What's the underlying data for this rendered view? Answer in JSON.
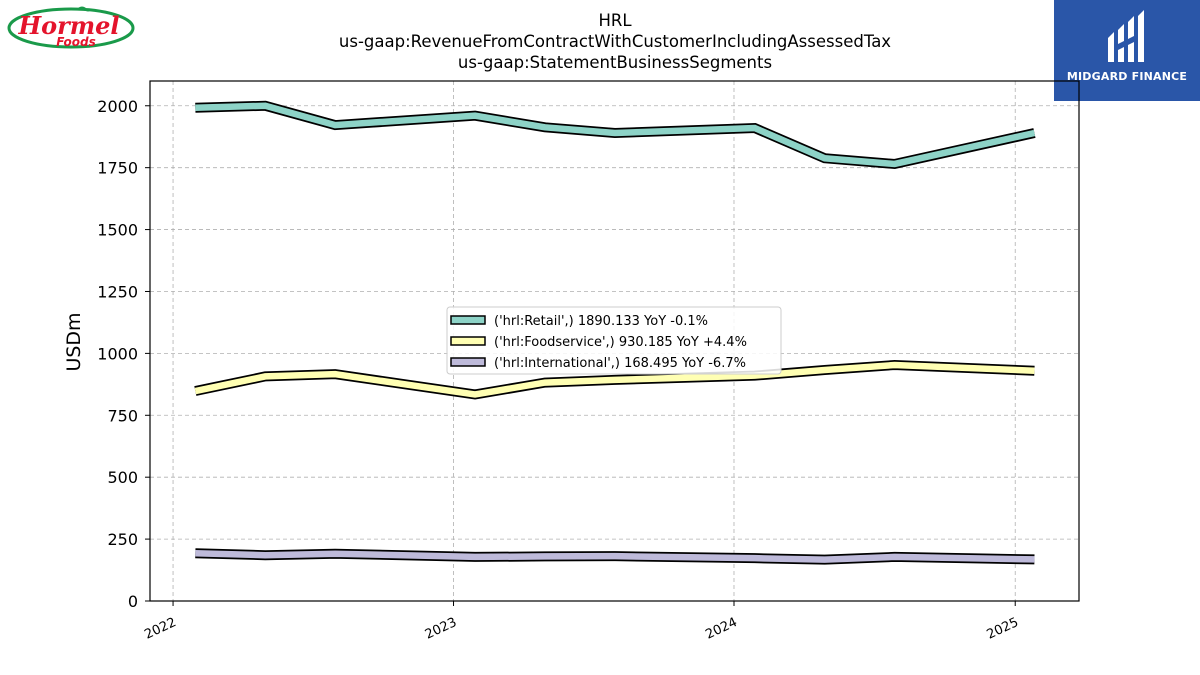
{
  "header": {
    "line1": "HRL",
    "line2": "us-gaap:RevenueFromContractWithCustomerIncludingAssessedTax",
    "line3": "us-gaap:StatementBusinessSegments"
  },
  "logos": {
    "left_text_main": "Hormel",
    "left_text_sub": "Foods",
    "right_text": "MIDGARD FINANCE"
  },
  "chart_data": {
    "type": "line",
    "ylabel": "USDm",
    "xlabel": "",
    "ylim": [
      0,
      2100
    ],
    "yticks": [
      0,
      250,
      500,
      750,
      1000,
      1250,
      1500,
      1750,
      2000
    ],
    "xticks": [
      "2022",
      "2023",
      "2024",
      "2025"
    ],
    "grid": true,
    "legend_position": "center",
    "x": [
      "2022-01-30",
      "2022-05-01",
      "2022-07-31",
      "2023-01-29",
      "2023-04-30",
      "2023-07-30",
      "2024-01-28",
      "2024-04-28",
      "2024-07-28",
      "2025-01-26"
    ],
    "series": [
      {
        "name": "('hrl:Retail',) 1890.133 YoY -0.1%",
        "color": "#8dd3c7",
        "values": [
          1992,
          2000,
          1922,
          1960,
          1913,
          1890,
          1910,
          1788,
          1765,
          1890
        ]
      },
      {
        "name": "('hrl:Foodservice',) 930.185 YoY +4.4%",
        "color": "#ffffb3",
        "values": [
          848,
          907,
          916,
          834,
          882,
          893,
          910,
          933,
          953,
          930
        ]
      },
      {
        "name": "('hrl:International',) 168.495 YoY -6.7%",
        "color": "#bebada",
        "values": [
          193,
          185,
          191,
          178,
          180,
          181,
          173,
          167,
          178,
          168
        ]
      }
    ]
  }
}
